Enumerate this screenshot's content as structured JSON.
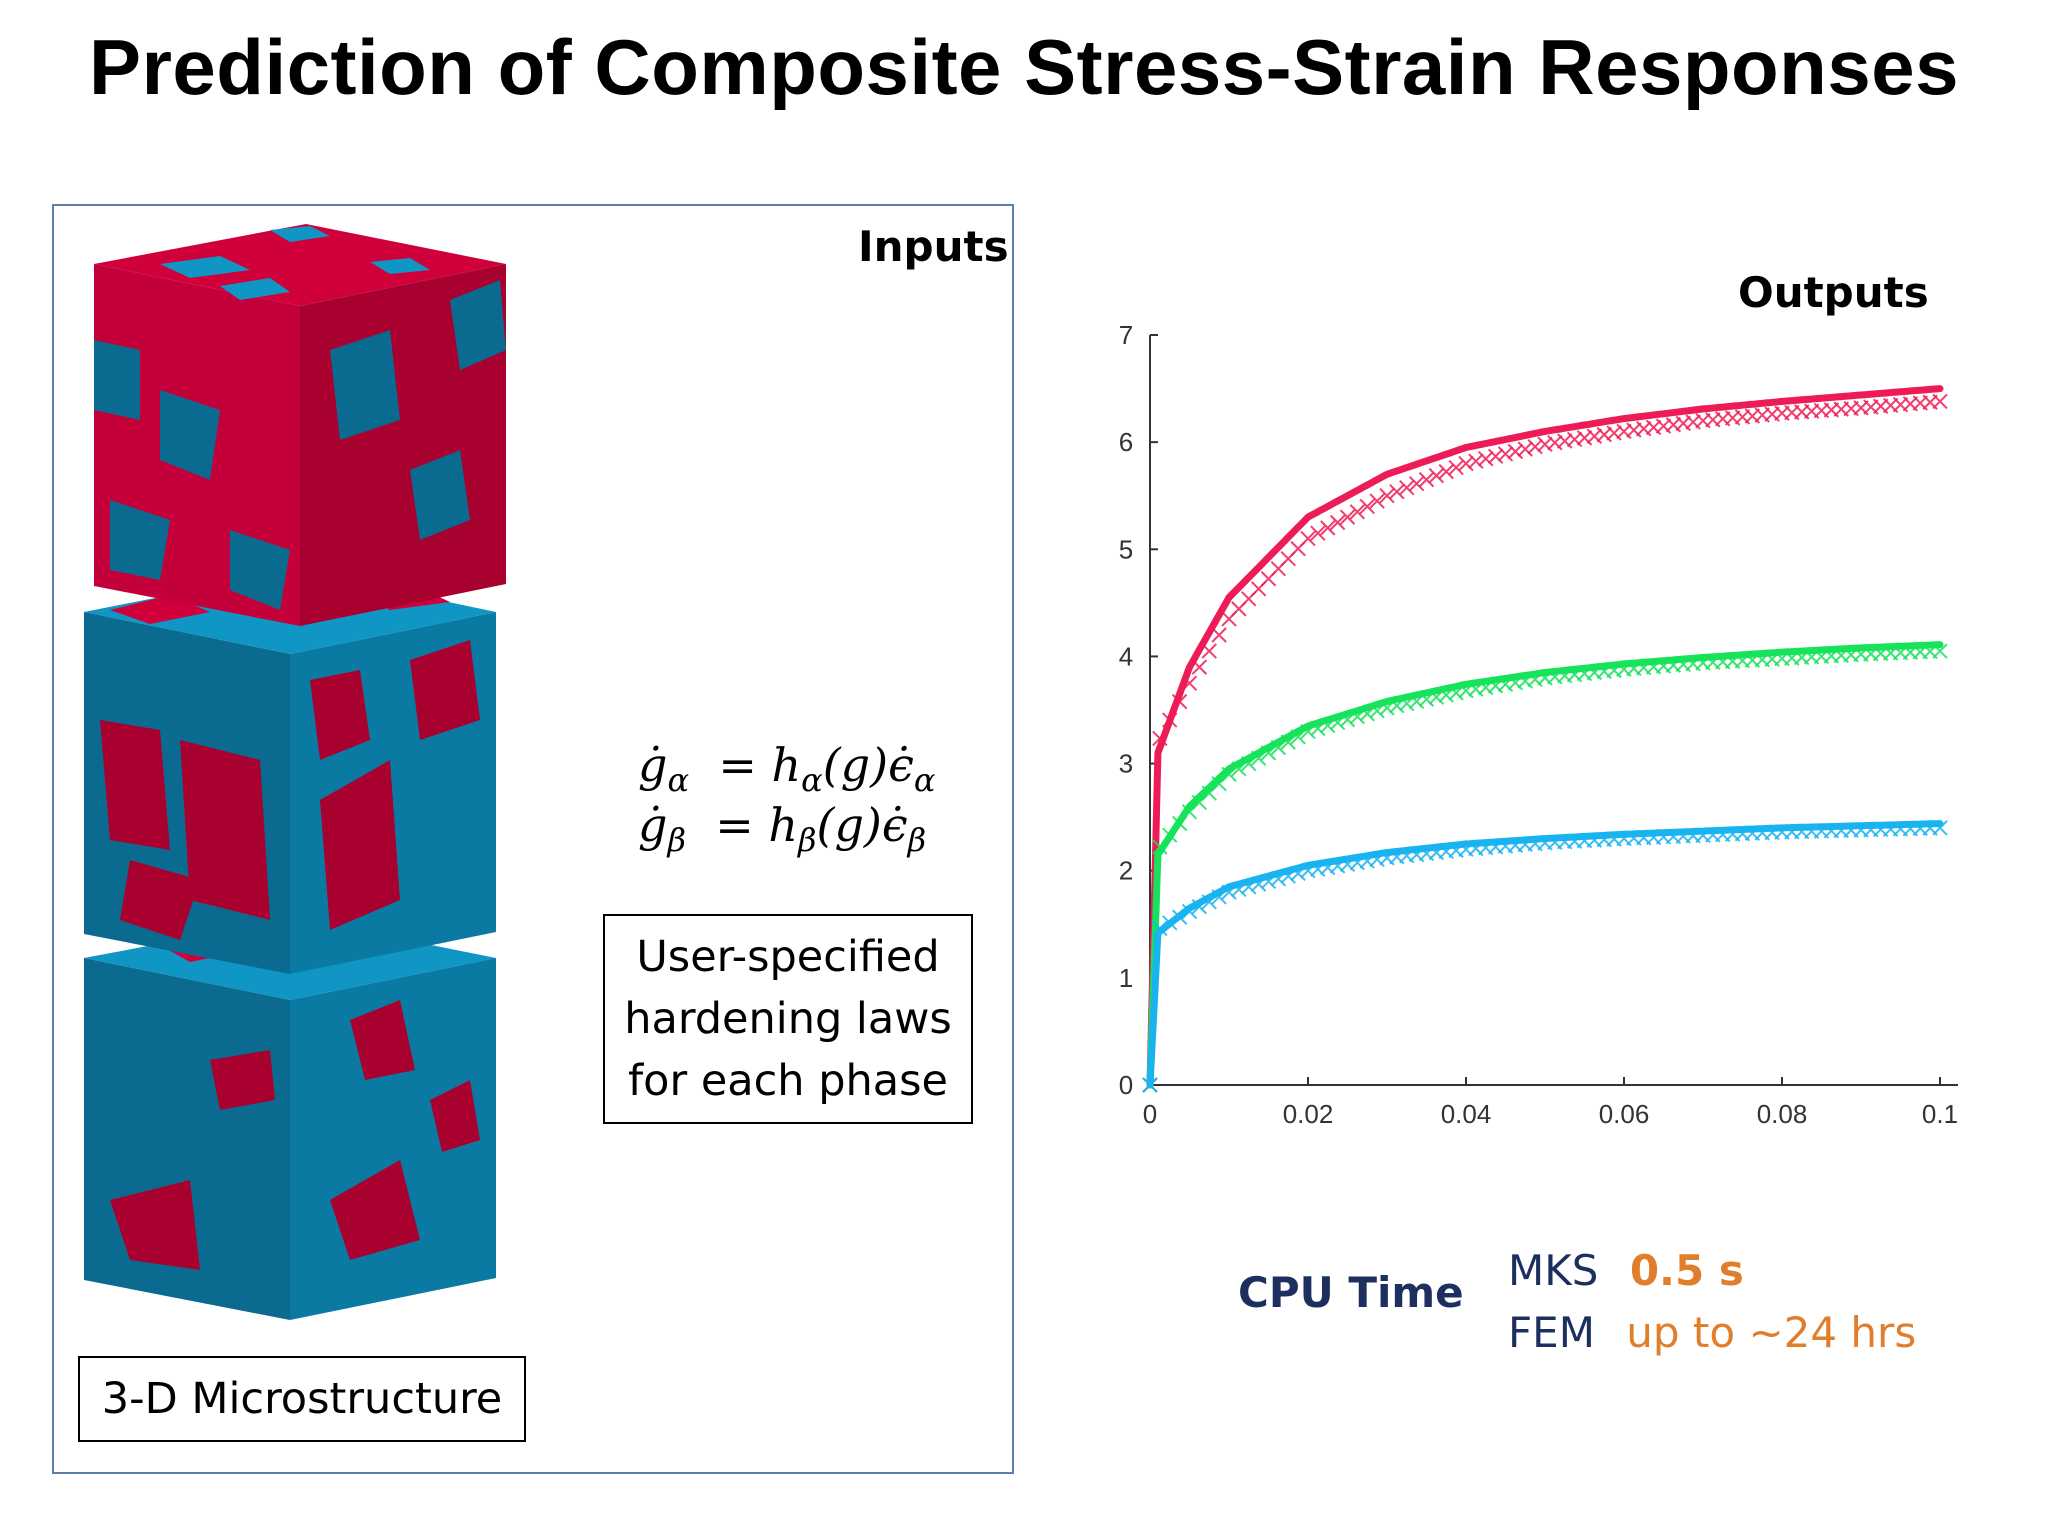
{
  "title": "Prediction of Composite Stress-Strain Responses",
  "inputs_label": "Inputs",
  "outputs_label": "Outputs",
  "equations": {
    "alpha": {
      "g": "ġ",
      "sub": "α",
      "eq": "= h",
      "h_sub": "α",
      "arg": "(g)",
      "eps": "ϵ̇",
      "eps_sub": "α"
    },
    "beta": {
      "g": "ġ",
      "sub": "β",
      "eq": "= h",
      "h_sub": "β",
      "arg": "(g)",
      "eps": "ϵ̇",
      "eps_sub": "β"
    }
  },
  "hardening_box": {
    "line1": "User-specified",
    "line2": "hardening laws",
    "line3": "for each phase"
  },
  "microstructure_label": "3-D Microstructure",
  "colors": {
    "red_phase": "#d0003a",
    "blue_phase": "#0f96c4",
    "dark_red": "#a8002f",
    "dark_blue": "#0a6a8f",
    "panel_border": "#5b7fa6",
    "navy": "#1c2f5e",
    "orange": "#e07e2c"
  },
  "cpu_time": {
    "label": "CPU Time",
    "rows": [
      {
        "method": "MKS",
        "value": "0.5 s"
      },
      {
        "method": "FEM",
        "value": "up to ~24 hrs"
      }
    ]
  },
  "chart_data": {
    "type": "line",
    "title": "",
    "xlabel": "",
    "ylabel": "",
    "xlim": [
      0,
      0.1
    ],
    "ylim": [
      0,
      7
    ],
    "x_ticks": [
      "0",
      "0.02",
      "0.04",
      "0.06",
      "0.08",
      "0.1"
    ],
    "y_ticks": [
      "0",
      "1",
      "2",
      "3",
      "4",
      "5",
      "6",
      "7"
    ],
    "grid": false,
    "legend": "none",
    "series": [
      {
        "color": "#ee1c56",
        "x": [
          0,
          0.001,
          0.005,
          0.01,
          0.02,
          0.03,
          0.04,
          0.05,
          0.06,
          0.07,
          0.08,
          0.09,
          0.1
        ],
        "y": [
          0,
          3.1,
          3.9,
          4.55,
          5.3,
          5.7,
          5.95,
          6.1,
          6.22,
          6.31,
          6.38,
          6.44,
          6.5
        ],
        "x_markers": [
          0,
          0.001,
          0.005,
          0.01,
          0.02,
          0.03,
          0.04,
          0.05,
          0.06,
          0.07,
          0.08,
          0.09,
          0.1
        ],
        "y_markers": [
          0,
          3.2,
          3.75,
          4.35,
          5.1,
          5.5,
          5.8,
          5.98,
          6.1,
          6.2,
          6.27,
          6.32,
          6.38
        ]
      },
      {
        "color": "#16e25a",
        "x": [
          0,
          0.001,
          0.005,
          0.01,
          0.02,
          0.03,
          0.04,
          0.05,
          0.06,
          0.07,
          0.08,
          0.09,
          0.1
        ],
        "y": [
          0,
          2.15,
          2.6,
          2.95,
          3.35,
          3.58,
          3.74,
          3.85,
          3.93,
          3.99,
          4.04,
          4.08,
          4.11
        ],
        "x_markers": [
          0,
          0.001,
          0.005,
          0.01,
          0.02,
          0.03,
          0.04,
          0.05,
          0.06,
          0.07,
          0.08,
          0.09,
          0.1
        ],
        "y_markers": [
          0,
          2.2,
          2.55,
          2.9,
          3.3,
          3.52,
          3.68,
          3.8,
          3.88,
          3.94,
          3.98,
          4.02,
          4.05
        ]
      },
      {
        "color": "#19b4f0",
        "x": [
          0,
          0.001,
          0.005,
          0.01,
          0.02,
          0.03,
          0.04,
          0.05,
          0.06,
          0.07,
          0.08,
          0.09,
          0.1
        ],
        "y": [
          0,
          1.42,
          1.65,
          1.85,
          2.05,
          2.17,
          2.25,
          2.3,
          2.34,
          2.37,
          2.4,
          2.42,
          2.44
        ],
        "x_markers": [
          0,
          0.001,
          0.005,
          0.01,
          0.02,
          0.03,
          0.04,
          0.05,
          0.06,
          0.07,
          0.08,
          0.09,
          0.1
        ],
        "y_markers": [
          0,
          1.45,
          1.62,
          1.8,
          2.0,
          2.12,
          2.2,
          2.26,
          2.3,
          2.33,
          2.36,
          2.38,
          2.4
        ]
      }
    ]
  }
}
